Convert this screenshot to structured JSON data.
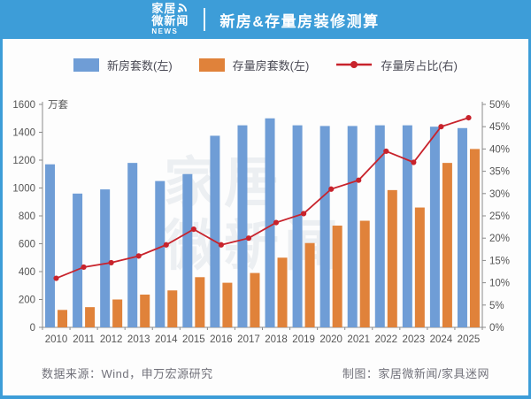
{
  "header": {
    "logo_line1": "家居",
    "logo_line2": "微新闻",
    "logo_line3": "NEWS",
    "title": "新房&存量房装修测算"
  },
  "legend": [
    {
      "label": "新房套数(左)",
      "color": "#6f9dd6",
      "type": "bar"
    },
    {
      "label": "存量房套数(左)",
      "color": "#e0823a",
      "type": "bar"
    },
    {
      "label": "存量房占比(右)",
      "color": "#c8232c",
      "type": "line"
    }
  ],
  "chart_data": {
    "type": "bar+line",
    "title": "新房&存量房装修测算",
    "categories": [
      "2010",
      "2011",
      "2012",
      "2013",
      "2014",
      "2015",
      "2016",
      "2017",
      "2018",
      "2019",
      "2020",
      "2021",
      "2022",
      "2023",
      "2024",
      "2025"
    ],
    "series": [
      {
        "name": "新房套数(左)",
        "type": "bar",
        "axis": "left",
        "color": "#6f9dd6",
        "values": [
          1170,
          960,
          990,
          1180,
          1050,
          1100,
          1375,
          1450,
          1500,
          1450,
          1445,
          1445,
          1450,
          1450,
          1440,
          1430
        ]
      },
      {
        "name": "存量房套数(左)",
        "type": "bar",
        "axis": "left",
        "color": "#e0823a",
        "values": [
          125,
          145,
          200,
          235,
          265,
          360,
          320,
          390,
          500,
          605,
          730,
          765,
          985,
          860,
          1180,
          1280
        ]
      },
      {
        "name": "存量房占比(右)",
        "type": "line",
        "axis": "right",
        "color": "#c8232c",
        "values": [
          11,
          13.5,
          14.5,
          16,
          18.5,
          22,
          18.5,
          20,
          23.5,
          25.5,
          31,
          33,
          39.5,
          37,
          45,
          47
        ]
      }
    ],
    "left_axis": {
      "unit": "万套",
      "min": 0,
      "max": 1600,
      "step": 200
    },
    "right_axis": {
      "min": 0,
      "max": 50,
      "step": 5,
      "suffix": "%"
    },
    "grid": false,
    "legend_position": "top"
  },
  "watermark": {
    "text": "家居\n微新闻"
  },
  "footer": {
    "source": "数据来源：Wind，申万宏源研究",
    "credit": "制图：家居微新闻/家具迷网"
  },
  "colors": {
    "header_bg": "#3d9dd8",
    "bar_new": "#6f9dd6",
    "bar_existing": "#e0823a",
    "ratio_line": "#c8232c",
    "axis": "#8a8a8a",
    "axis_label": "#555555"
  }
}
